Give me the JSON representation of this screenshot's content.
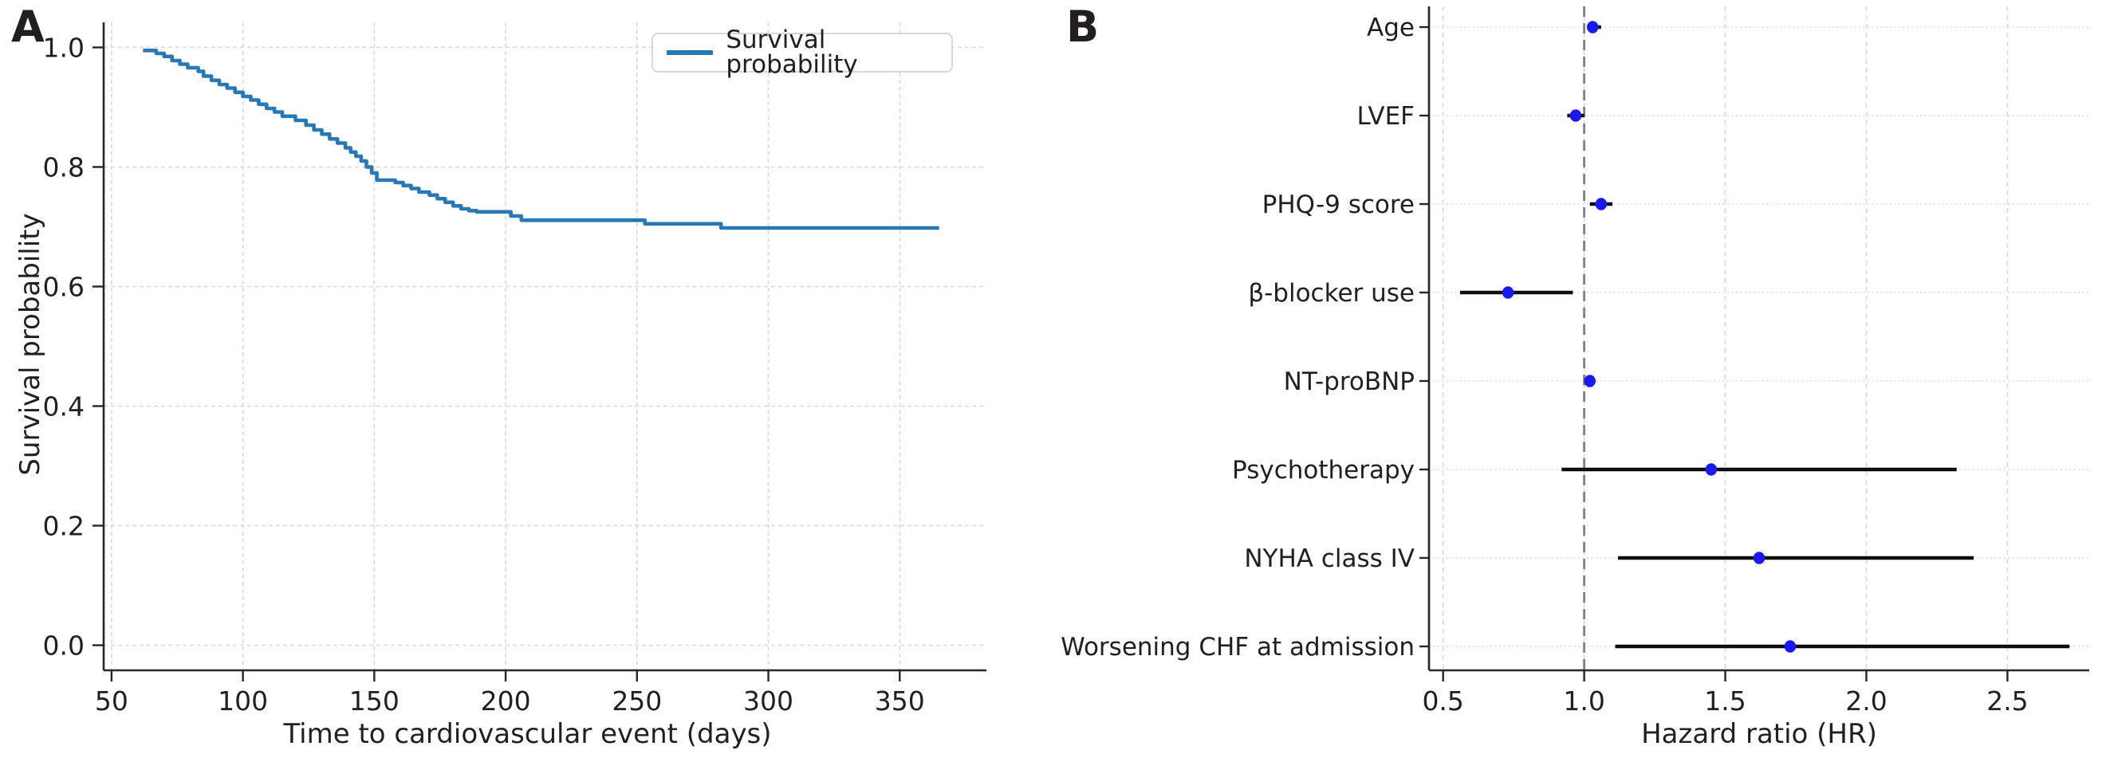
{
  "panels": {
    "a": {
      "letter": "A"
    },
    "b": {
      "letter": "B"
    }
  },
  "colors": {
    "km_line": "#2878b5",
    "marker": "#1a1af0",
    "ci_line": "#0d0d0d",
    "reference_line": "#808080",
    "grid": "#d9d9d9",
    "spine": "#262626",
    "text": "#231f20"
  },
  "chart_data": [
    {
      "id": "km_curve",
      "type": "line",
      "title": "",
      "xlabel": "Time to cardiovascular event (days)",
      "ylabel": "Survival probability",
      "legend": [
        "Survival probability"
      ],
      "legend_position": "top-right",
      "grid": true,
      "xlim": [
        47,
        383
      ],
      "ylim": [
        -0.042,
        1.042
      ],
      "x_ticks": [
        50,
        100,
        150,
        200,
        250,
        300,
        350
      ],
      "x_tick_labels": [
        "50",
        "100",
        "150",
        "200",
        "250",
        "300",
        "350"
      ],
      "y_ticks": [
        0.0,
        0.2,
        0.4,
        0.6,
        0.8,
        1.0
      ],
      "y_tick_labels": [
        "0.0",
        "0.2",
        "0.4",
        "0.6",
        "0.8",
        "1.0"
      ],
      "step_points": [
        [
          62,
          0.995
        ],
        [
          67,
          0.99
        ],
        [
          70,
          0.985
        ],
        [
          73,
          0.978
        ],
        [
          76,
          0.972
        ],
        [
          79,
          0.966
        ],
        [
          83,
          0.96
        ],
        [
          85,
          0.952
        ],
        [
          88,
          0.945
        ],
        [
          91,
          0.938
        ],
        [
          94,
          0.932
        ],
        [
          97,
          0.925
        ],
        [
          100,
          0.918
        ],
        [
          103,
          0.912
        ],
        [
          106,
          0.905
        ],
        [
          109,
          0.898
        ],
        [
          112,
          0.892
        ],
        [
          115,
          0.885
        ],
        [
          120,
          0.878
        ],
        [
          124,
          0.87
        ],
        [
          127,
          0.862
        ],
        [
          130,
          0.855
        ],
        [
          133,
          0.847
        ],
        [
          136,
          0.84
        ],
        [
          139,
          0.832
        ],
        [
          141,
          0.825
        ],
        [
          143,
          0.818
        ],
        [
          145,
          0.81
        ],
        [
          147,
          0.8
        ],
        [
          149,
          0.79
        ],
        [
          151,
          0.778
        ],
        [
          158,
          0.774
        ],
        [
          161,
          0.769
        ],
        [
          164,
          0.764
        ],
        [
          167,
          0.758
        ],
        [
          171,
          0.753
        ],
        [
          174,
          0.747
        ],
        [
          177,
          0.741
        ],
        [
          180,
          0.735
        ],
        [
          183,
          0.73
        ],
        [
          186,
          0.727
        ],
        [
          189,
          0.725
        ],
        [
          202,
          0.718
        ],
        [
          206,
          0.711
        ],
        [
          253,
          0.705
        ],
        [
          282,
          0.698
        ],
        [
          365,
          0.698
        ]
      ]
    },
    {
      "id": "forest_plot",
      "type": "scatter",
      "title": "",
      "xlabel": "Hazard ratio (HR)",
      "grid": true,
      "xlim": [
        0.45,
        2.79
      ],
      "reference_line": 1.0,
      "x_ticks": [
        0.5,
        1.0,
        1.5,
        2.0,
        2.5
      ],
      "x_tick_labels": [
        "0.5",
        "1.0",
        "1.5",
        "2.0",
        "2.5"
      ],
      "rows": [
        {
          "label": "Age",
          "hr": 1.03,
          "ci": [
            1.01,
            1.06
          ]
        },
        {
          "label": "LVEF",
          "hr": 0.97,
          "ci": [
            0.94,
            1.0
          ]
        },
        {
          "label": "PHQ-9 score",
          "hr": 1.06,
          "ci": [
            1.02,
            1.1
          ]
        },
        {
          "label": "β-blocker use",
          "hr": 0.73,
          "ci": [
            0.56,
            0.96
          ]
        },
        {
          "label": "NT-proBNP",
          "hr": 1.02,
          "ci": [
            1.0,
            1.04
          ]
        },
        {
          "label": "Psychotherapy",
          "hr": 1.45,
          "ci": [
            0.92,
            2.32
          ]
        },
        {
          "label": "NYHA class IV",
          "hr": 1.62,
          "ci": [
            1.12,
            2.38
          ]
        },
        {
          "label": "Worsening CHF at admission",
          "hr": 1.73,
          "ci": [
            1.11,
            2.72
          ]
        }
      ]
    }
  ]
}
